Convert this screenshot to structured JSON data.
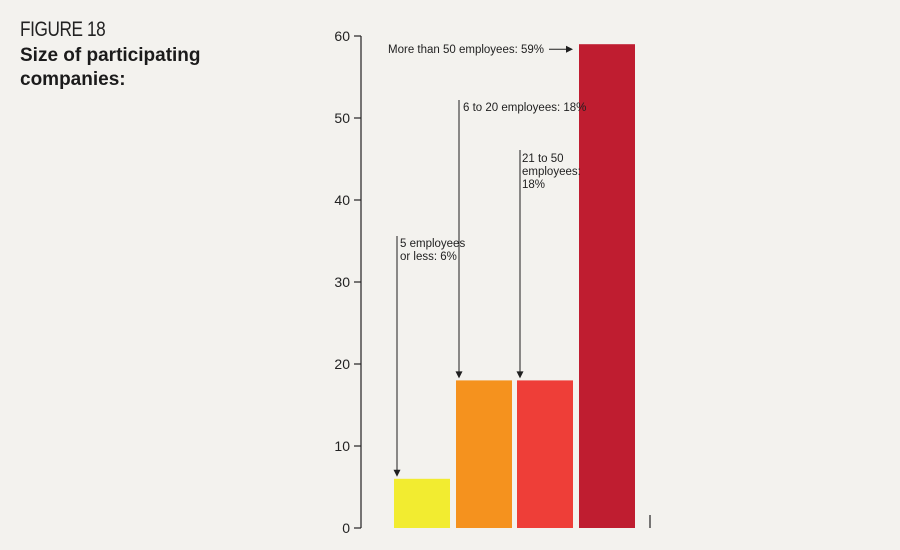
{
  "figure_label": "FIGURE 18",
  "title": "Size of participating companies:",
  "chart_data": {
    "type": "bar",
    "categories": [
      "5 employees or less",
      "6 to 20 employees",
      "21 to 50 employees",
      "More than 50 employees"
    ],
    "values": [
      6,
      18,
      18,
      59
    ],
    "colors": [
      "#f2ec30",
      "#f5921e",
      "#ee3e38",
      "#bf1d30"
    ],
    "ylim": [
      0,
      60
    ],
    "yticks": [
      0,
      10,
      20,
      30,
      40,
      50,
      60
    ],
    "annotations": [
      [
        "5 employees",
        "or less: 6%"
      ],
      [
        "6 to 20 employees: 18%"
      ],
      [
        "21 to 50",
        "employees:",
        "18%"
      ],
      [
        "More than 50 employees: 59%"
      ]
    ],
    "xlabel": "",
    "ylabel": "",
    "grid": false,
    "legend": "none"
  }
}
